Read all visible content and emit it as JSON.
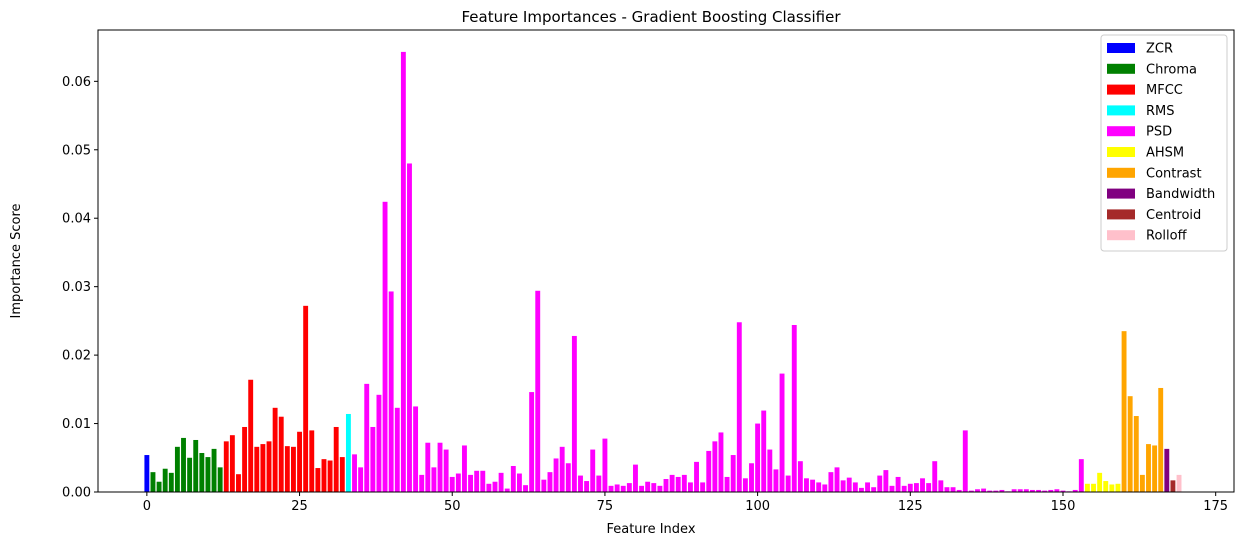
{
  "chart_data": {
    "type": "bar",
    "title": "Feature Importances - Gradient Boosting Classifier",
    "xlabel": "Feature Index",
    "ylabel": "Importance Score",
    "xlim": [
      -8,
      178
    ],
    "ylim": [
      0,
      0.0675
    ],
    "xticks": [
      0,
      25,
      50,
      75,
      100,
      125,
      150,
      175
    ],
    "yticks": [
      0.0,
      0.01,
      0.02,
      0.03,
      0.04,
      0.05,
      0.06
    ],
    "ytick_labels": [
      "0.00",
      "0.01",
      "0.02",
      "0.03",
      "0.04",
      "0.05",
      "0.06"
    ],
    "legend_position": "top-right",
    "series": [
      {
        "name": "ZCR",
        "color": "#0000ff",
        "start": 0,
        "values": [
          0.0054
        ]
      },
      {
        "name": "Chroma",
        "color": "#008000",
        "start": 1,
        "values": [
          0.0029,
          0.0015,
          0.0034,
          0.0028,
          0.0066,
          0.0079,
          0.005,
          0.0076,
          0.0057,
          0.0051,
          0.0063,
          0.0036
        ]
      },
      {
        "name": "MFCC",
        "color": "#ff0000",
        "start": 13,
        "values": [
          0.0074,
          0.0083,
          0.0026,
          0.0095,
          0.0164,
          0.0066,
          0.007,
          0.0074,
          0.0123,
          0.011,
          0.0067,
          0.0066,
          0.0088,
          0.0272,
          0.009,
          0.0035,
          0.0048,
          0.0046,
          0.0095,
          0.0051
        ]
      },
      {
        "name": "RMS",
        "color": "#00ffff",
        "start": 33,
        "values": [
          0.0114
        ]
      },
      {
        "name": "PSD",
        "color": "#ff00ff",
        "start": 34,
        "values": [
          0.0055,
          0.0036,
          0.0158,
          0.0095,
          0.0142,
          0.0424,
          0.0293,
          0.0123,
          0.0643,
          0.048,
          0.0125,
          0.0025,
          0.0072,
          0.0036,
          0.0072,
          0.0062,
          0.0022,
          0.0027,
          0.0068,
          0.0025,
          0.0031,
          0.0031,
          0.0012,
          0.0015,
          0.0028,
          0.0005,
          0.0038,
          0.0027,
          0.001,
          0.0146,
          0.0294,
          0.0018,
          0.0029,
          0.0049,
          0.0066,
          0.0042,
          0.0228,
          0.0024,
          0.0016,
          0.0062,
          0.0024,
          0.0078,
          0.0009,
          0.0011,
          0.0009,
          0.0013,
          0.004,
          0.0009,
          0.0015,
          0.0013,
          0.0009,
          0.0019,
          0.0025,
          0.0022,
          0.0025,
          0.0014,
          0.0044,
          0.0014,
          0.006,
          0.0074,
          0.0087,
          0.0022,
          0.0054,
          0.0248,
          0.002,
          0.0042,
          0.01,
          0.0119,
          0.0062,
          0.0033,
          0.0173,
          0.0024,
          0.0244,
          0.0045,
          0.002,
          0.0018,
          0.0014,
          0.0011,
          0.0029,
          0.0036,
          0.0017,
          0.0021,
          0.0014,
          0.0006,
          0.0014,
          0.0007,
          0.0024,
          0.0032,
          0.0009,
          0.0022,
          0.0009,
          0.0012,
          0.0013,
          0.002,
          0.0013,
          0.0045,
          0.0017,
          0.0007,
          0.0007,
          0.0003,
          0.009,
          0.0002,
          0.0004,
          0.0005,
          0.0002,
          0.0002,
          0.0003,
          0.0001,
          0.0004,
          0.0004,
          0.0004,
          0.0003,
          0.0003,
          0.0002,
          0.0003,
          0.0004,
          0.0002,
          0.0001,
          0.0003,
          0.0048
        ]
      },
      {
        "name": "AHSM",
        "color": "#ffff00",
        "start": 154,
        "values": [
          0.0012,
          0.0012,
          0.0028,
          0.0016,
          0.0011,
          0.0012
        ]
      },
      {
        "name": "Contrast",
        "color": "#ffa500",
        "start": 160,
        "values": [
          0.0235,
          0.014,
          0.0111,
          0.0025,
          0.007,
          0.0068,
          0.0152
        ]
      },
      {
        "name": "Bandwidth",
        "color": "#800080",
        "start": 167,
        "values": [
          0.0063
        ]
      },
      {
        "name": "Centroid",
        "color": "#a52a2a",
        "start": 168,
        "values": [
          0.0017
        ]
      },
      {
        "name": "Rolloff",
        "color": "#ffc0cb",
        "start": 169,
        "values": [
          0.0025
        ]
      }
    ]
  }
}
